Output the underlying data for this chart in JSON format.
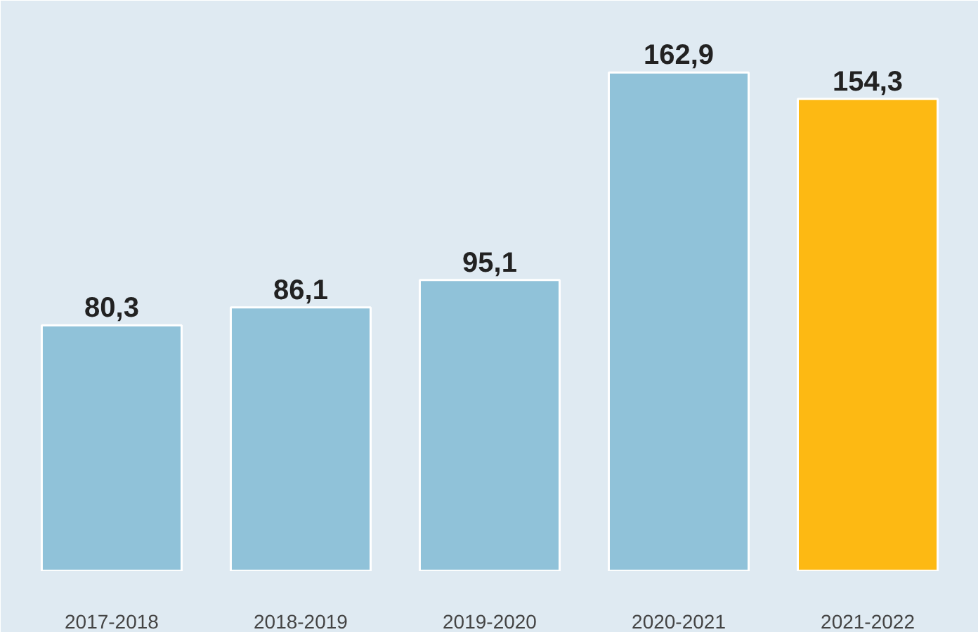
{
  "chart_data": {
    "type": "bar",
    "categories": [
      "2017-2018",
      "2018-2019",
      "2019-2020",
      "2020-2021",
      "2021-2022"
    ],
    "values": [
      80.3,
      86.1,
      95.1,
      162.9,
      154.3
    ],
    "colors": [
      "#90c2d9",
      "#90c2d9",
      "#90c2d9",
      "#90c2d9",
      "#fdb913"
    ],
    "value_labels": [
      "80,3",
      "86,1",
      "95,1",
      "162,9",
      "154,3"
    ],
    "grid": false
  }
}
